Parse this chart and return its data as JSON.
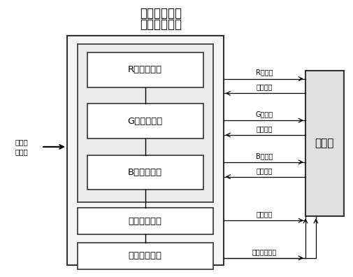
{
  "title_line1": "大电流变换高",
  "title_line2": "瞬态响应电源",
  "left_label_line1": "前级直",
  "left_label_line2": "流电源",
  "right_box_label": "驱动板",
  "inner_boxes": [
    "R点灯子模块",
    "G点灯子模块",
    "B点灯子模块",
    "时序控制模块",
    "电源管理模块"
  ],
  "right_labels": [
    "R路电源",
    "反馈信号",
    "G路电源",
    "反馈信号",
    "B路电源",
    "反馈信号",
    "时序控制",
    "数据信息交互"
  ],
  "bg_color": "#ffffff",
  "box_color": "#ffffff",
  "border_color": "#333333",
  "text_color": "#000000",
  "title_fontsize": 12,
  "label_fontsize": 7.5,
  "inner_fontsize": 9.5,
  "small_fontsize": 7.0
}
